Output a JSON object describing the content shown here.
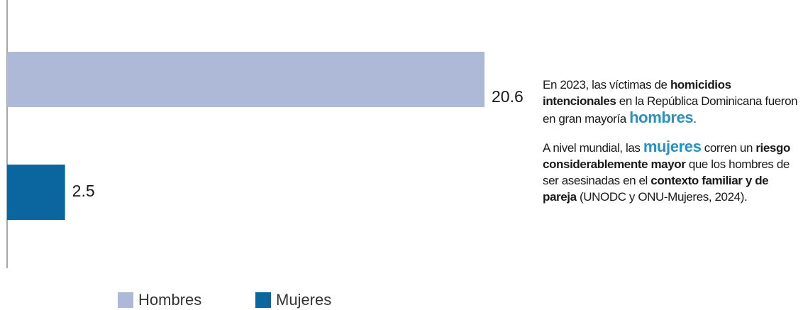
{
  "chart_data": {
    "type": "bar",
    "orientation": "horizontal",
    "series": [
      {
        "name": "Hombres",
        "color": "#adb9d6",
        "values": [
          20.6
        ]
      },
      {
        "name": "Mujeres",
        "color": "#0b66a0",
        "values": [
          2.5
        ]
      }
    ],
    "annotation": {
      "paragraphs": [
        [
          {
            "text": "En 2023, las víctimas de ",
            "style": "normal"
          },
          {
            "text": "homicidios intencionales",
            "style": "bold"
          },
          {
            "text": " en la República Dominicana fueron en gran mayoría ",
            "style": "normal"
          },
          {
            "text": "hombres",
            "style": "highlight"
          },
          {
            "text": ".",
            "style": "normal"
          }
        ],
        [
          {
            "text": "A nivel mundial, las ",
            "style": "normal"
          },
          {
            "text": "mujeres",
            "style": "highlight"
          },
          {
            "text": " corren un ",
            "style": "normal"
          },
          {
            "text": "riesgo considerablemente mayor",
            "style": "bold"
          },
          {
            "text": " que los hombres de ser asesinadas en el ",
            "style": "normal"
          },
          {
            "text": "contexto familiar y de pareja",
            "style": "bold"
          },
          {
            "text": " (UNODC y ONU-Mujeres, 2024).",
            "style": "normal"
          }
        ]
      ]
    }
  }
}
